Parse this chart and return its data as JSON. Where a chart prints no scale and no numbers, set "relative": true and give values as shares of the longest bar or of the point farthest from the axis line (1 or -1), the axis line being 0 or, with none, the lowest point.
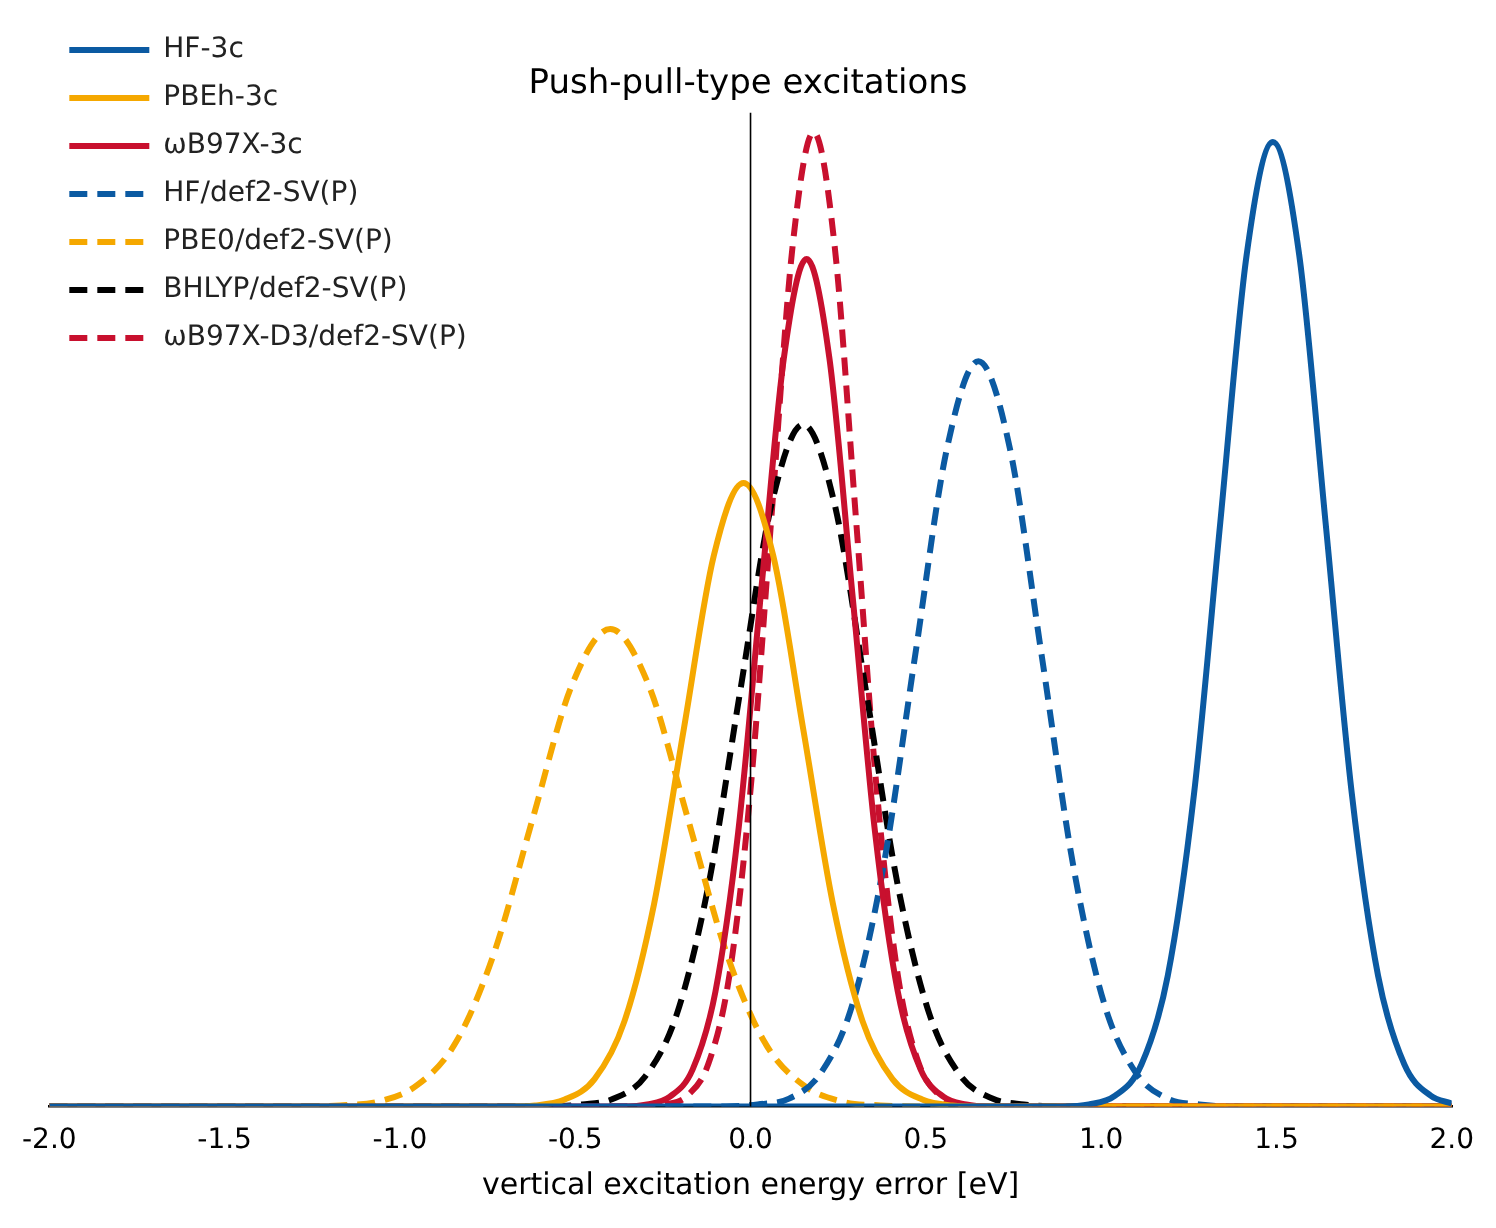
{
  "chart_data": {
    "type": "line",
    "title": "Push-pull-type excitations",
    "xlabel": "vertical excitation energy error [eV]",
    "relative": true,
    "legend": "top left",
    "marker": "none",
    "grid": false,
    "tick_labels": "x",
    "xlim": [
      -2,
      2
    ],
    "xticks": [
      {
        "value": -2,
        "label": "-2.0"
      },
      {
        "value": -1.5,
        "label": "-1.5"
      },
      {
        "value": -1,
        "label": "-1.0"
      },
      {
        "value": -0.5,
        "label": "-0.5"
      },
      {
        "value": 0,
        "label": "0.0"
      },
      {
        "value": 0.5,
        "label": "0.5"
      },
      {
        "value": 1,
        "label": "1.0"
      },
      {
        "value": 1.5,
        "label": "1.5"
      },
      {
        "value": 2,
        "label": "2.0"
      }
    ],
    "ref_lines": [
      {
        "axis": "x",
        "value": 0,
        "color": "#000000"
      }
    ],
    "series": [
      {
        "name": "HF-3c",
        "color": "#0b5aa2",
        "line_style": "solid",
        "x": [
          -2,
          0.89,
          0.965,
          1.04,
          1.115,
          1.19,
          1.265,
          1.34,
          1.415,
          1.49,
          1.565,
          1.64,
          1.715,
          1.79,
          1.865,
          1.94,
          2
        ],
        "values": [
          0,
          0,
          0.002,
          0.011,
          0.043,
          0.134,
          0.321,
          0.6,
          0.874,
          0.99,
          0.874,
          0.6,
          0.321,
          0.134,
          0.043,
          0.011,
          0.003
        ]
      },
      {
        "name": "PBEh-3c",
        "color": "#f5a800",
        "line_style": "solid",
        "x": [
          -2,
          -0.7,
          -0.615,
          -0.53,
          -0.445,
          -0.36,
          -0.275,
          -0.19,
          -0.105,
          -0.02,
          0.065,
          0.15,
          0.235,
          0.32,
          0.405,
          0.49,
          0.575,
          0.66,
          2
        ],
        "values": [
          0,
          0,
          0.001,
          0.007,
          0.028,
          0.087,
          0.208,
          0.388,
          0.565,
          0.64,
          0.565,
          0.388,
          0.208,
          0.087,
          0.028,
          0.007,
          0.001,
          0,
          0
        ]
      },
      {
        "name": "ωB97X-3c",
        "color": "#c8102e",
        "line_style": "solid",
        "x": [
          -2,
          -0.36,
          -0.295,
          -0.23,
          -0.165,
          -0.1,
          -0.035,
          0.03,
          0.095,
          0.16,
          0.225,
          0.29,
          0.355,
          0.42,
          0.485,
          0.55,
          0.615,
          0.68,
          2
        ],
        "values": [
          0,
          0,
          0.002,
          0.01,
          0.038,
          0.118,
          0.282,
          0.528,
          0.768,
          0.87,
          0.768,
          0.528,
          0.282,
          0.118,
          0.038,
          0.01,
          0.002,
          0,
          0
        ]
      },
      {
        "name": "HF/def2-SV(P)",
        "color": "#0b5aa2",
        "line_style": "dashed",
        "x": [
          -2,
          -0.07,
          0.02,
          0.11,
          0.2,
          0.29,
          0.38,
          0.47,
          0.56,
          0.65,
          0.74,
          0.83,
          0.92,
          1.01,
          1.1,
          1.19,
          1.28,
          1.37,
          2
        ],
        "values": [
          0,
          0,
          0.002,
          0.008,
          0.034,
          0.104,
          0.248,
          0.464,
          0.675,
          0.765,
          0.675,
          0.464,
          0.248,
          0.104,
          0.034,
          0.008,
          0.002,
          0,
          0
        ]
      },
      {
        "name": "PBE0/def2-SV(P)",
        "color": "#f5a800",
        "line_style": "dashed",
        "x": [
          -2,
          -1.28,
          -1.17,
          -1.06,
          -0.95,
          -0.84,
          -0.73,
          -0.62,
          -0.51,
          -0.4,
          -0.29,
          -0.18,
          -0.07,
          0.04,
          0.15,
          0.26,
          0.37,
          0.48,
          2
        ],
        "values": [
          0,
          0,
          0.001,
          0.005,
          0.022,
          0.066,
          0.159,
          0.297,
          0.432,
          0.49,
          0.432,
          0.297,
          0.159,
          0.066,
          0.022,
          0.005,
          0.001,
          0,
          0
        ]
      },
      {
        "name": "BHLYP/def2-SV(P)",
        "color": "#000000",
        "line_style": "dashed",
        "x": [
          -2,
          -0.57,
          -0.48,
          -0.39,
          -0.3,
          -0.21,
          -0.12,
          -0.03,
          0.06,
          0.15,
          0.24,
          0.33,
          0.42,
          0.51,
          0.6,
          0.69,
          0.78,
          0.87,
          2
        ],
        "values": [
          0,
          0,
          0.002,
          0.008,
          0.031,
          0.095,
          0.227,
          0.425,
          0.618,
          0.7,
          0.618,
          0.425,
          0.227,
          0.095,
          0.031,
          0.008,
          0.002,
          0,
          0
        ]
      },
      {
        "name": "ωB97X-D3/def2-SV(P)",
        "color": "#c8102e",
        "line_style": "dashed",
        "x": [
          -2,
          -0.3,
          -0.24,
          -0.18,
          -0.12,
          -0.06,
          0,
          0.06,
          0.12,
          0.18,
          0.24,
          0.3,
          0.36,
          0.42,
          0.48,
          0.54,
          0.6,
          0.66,
          2
        ],
        "values": [
          0,
          0,
          0.002,
          0.011,
          0.044,
          0.135,
          0.325,
          0.607,
          0.883,
          1,
          0.883,
          0.607,
          0.325,
          0.135,
          0.044,
          0.011,
          0.002,
          0,
          0
        ]
      }
    ]
  }
}
